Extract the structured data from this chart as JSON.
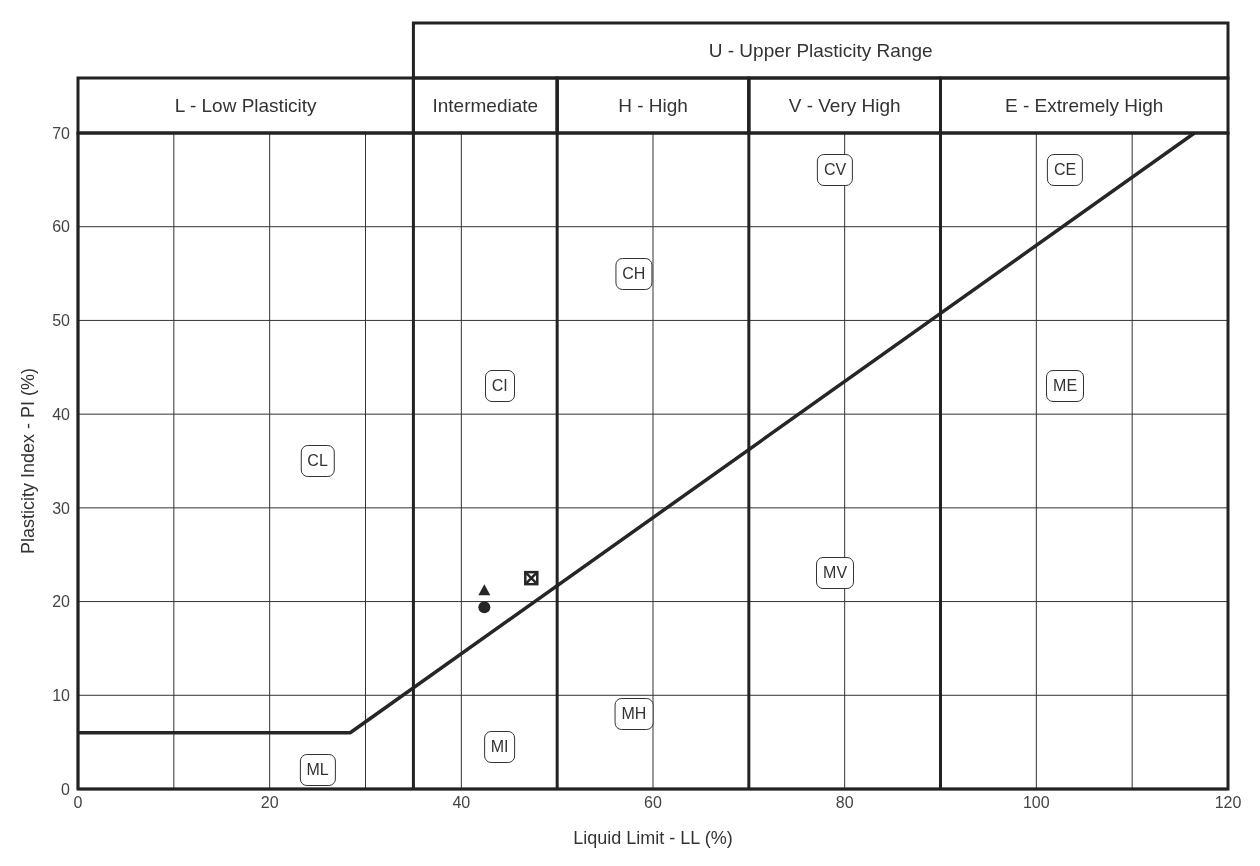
{
  "chart_data": {
    "type": "scatter",
    "xlabel": "Liquid Limit - LL (%)",
    "ylabel": "Plasticity Index - PI (%)",
    "xlim": [
      0,
      120
    ],
    "xticks": [
      0,
      20,
      40,
      60,
      80,
      100,
      120
    ],
    "ylim": [
      0,
      70
    ],
    "yticks": [
      0,
      10,
      20,
      30,
      40,
      50,
      60,
      70
    ],
    "grid": true,
    "series": [
      {
        "type": "line",
        "color": "#262626",
        "x": [
          0,
          28.4,
          116.5
        ],
        "values": [
          6,
          6,
          70
        ],
        "marker": "none"
      },
      {
        "color": "#262626",
        "x": [
          42.4
        ],
        "values": [
          21.2
        ],
        "marker": "triangle"
      },
      {
        "color": "#262626",
        "x": [
          42.4
        ],
        "values": [
          19.4
        ],
        "marker": "circle"
      },
      {
        "color": "#262626",
        "x": [
          47.3
        ],
        "values": [
          22.5
        ],
        "marker": "square"
      }
    ],
    "ref_lines": [
      {
        "axis": "x",
        "value": 35,
        "color": "#222222"
      },
      {
        "axis": "x",
        "value": 50,
        "color": "#222222"
      },
      {
        "axis": "x",
        "value": 70,
        "color": "#222222"
      },
      {
        "axis": "x",
        "value": 90,
        "color": "#222222"
      }
    ],
    "annotations": [
      "U - Upper Plasticity Range",
      "L - Low Plasticity",
      "Intermediate",
      "H - High",
      "V - Very High",
      "E - Extremely High",
      {
        "text": "CL",
        "x": 25,
        "y": 35
      },
      {
        "text": "CI",
        "x": 44,
        "y": 43
      },
      {
        "text": "CH",
        "x": 58,
        "y": 55
      },
      {
        "text": "CV",
        "x": 79,
        "y": 66
      },
      {
        "text": "CE",
        "x": 103,
        "y": 66
      },
      {
        "text": "ME",
        "x": 103,
        "y": 43
      },
      {
        "text": "MV",
        "x": 79,
        "y": 23
      },
      {
        "text": "MH",
        "x": 58,
        "y": 8
      },
      {
        "text": "MI",
        "x": 44,
        "y": 4.5
      },
      {
        "text": "ML",
        "x": 25,
        "y": 2
      }
    ]
  }
}
